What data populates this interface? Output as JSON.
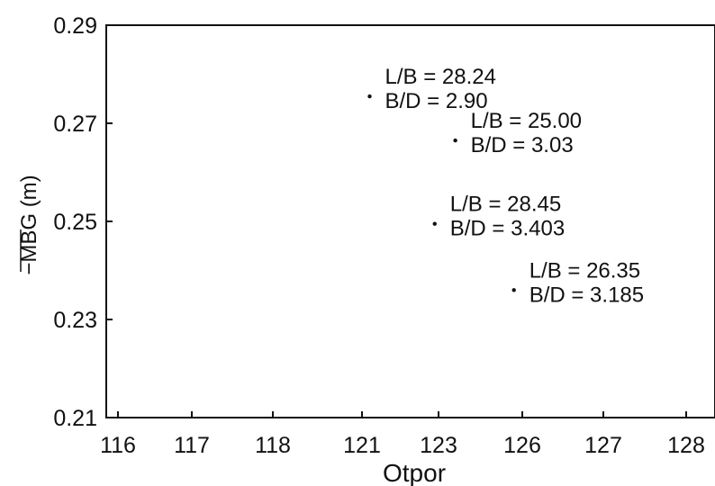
{
  "chart_data": {
    "type": "scatter",
    "xlabel": "Otpor",
    "ylabel": "−MBG (m)",
    "x_tick_labels": [
      "116",
      "117",
      "118",
      "121",
      "123",
      "126",
      "127",
      "128"
    ],
    "y_tick_labels": [
      "0.29",
      "0.27",
      "0.25",
      "0.23",
      "0.21"
    ],
    "ylim": [
      0.21,
      0.29
    ],
    "grid": false,
    "points": [
      {
        "x": 121.2,
        "y": 0.2755,
        "line1": "L/B = 28.24",
        "line2": "B/D = 2.90"
      },
      {
        "x": 123.6,
        "y": 0.2665,
        "line1": "L/B = 25.00",
        "line2": "B/D = 3.03"
      },
      {
        "x": 122.9,
        "y": 0.2495,
        "line1": "L/B = 28.45",
        "line2": "B/D = 3.403"
      },
      {
        "x": 125.7,
        "y": 0.236,
        "line1": "L/B = 26.35",
        "line2": "B/D = 3.185"
      }
    ]
  }
}
